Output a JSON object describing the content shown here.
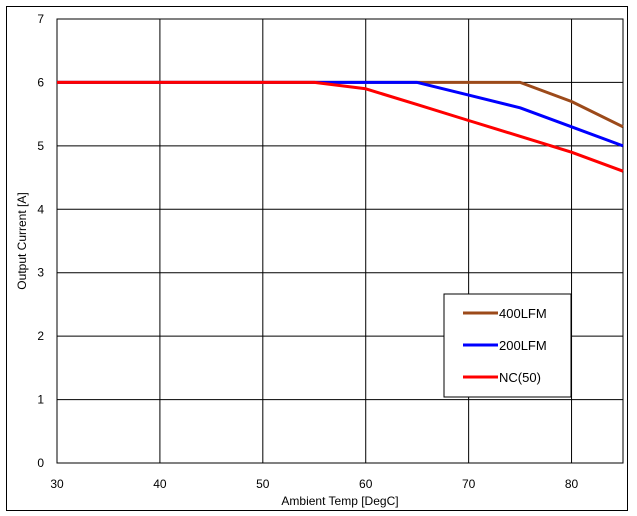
{
  "chart_data": {
    "type": "line",
    "title": "",
    "xlabel": "Ambient Temp [DegC]",
    "ylabel": "Output Current [A]",
    "xlim": [
      30,
      85
    ],
    "ylim": [
      0,
      7
    ],
    "xticks": [
      30,
      40,
      50,
      60,
      70,
      80
    ],
    "yticks": [
      0,
      1,
      2,
      3,
      4,
      5,
      6,
      7
    ],
    "grid": true,
    "legend_position": "bottom-right",
    "series": [
      {
        "name": "400LFM",
        "color": "#9c4a1a",
        "x": [
          30,
          75,
          80,
          85
        ],
        "y": [
          6,
          6,
          5.7,
          5.3
        ]
      },
      {
        "name": "200LFM",
        "color": "#0000ff",
        "x": [
          30,
          65,
          70,
          75,
          80,
          85
        ],
        "y": [
          6,
          6,
          5.8,
          5.6,
          5.3,
          5.0
        ]
      },
      {
        "name": "NC(50)",
        "color": "#ff0000",
        "x": [
          30,
          55,
          60,
          65,
          70,
          75,
          80,
          85
        ],
        "y": [
          6,
          6,
          5.9,
          5.65,
          5.4,
          5.15,
          4.9,
          4.6
        ]
      }
    ]
  }
}
